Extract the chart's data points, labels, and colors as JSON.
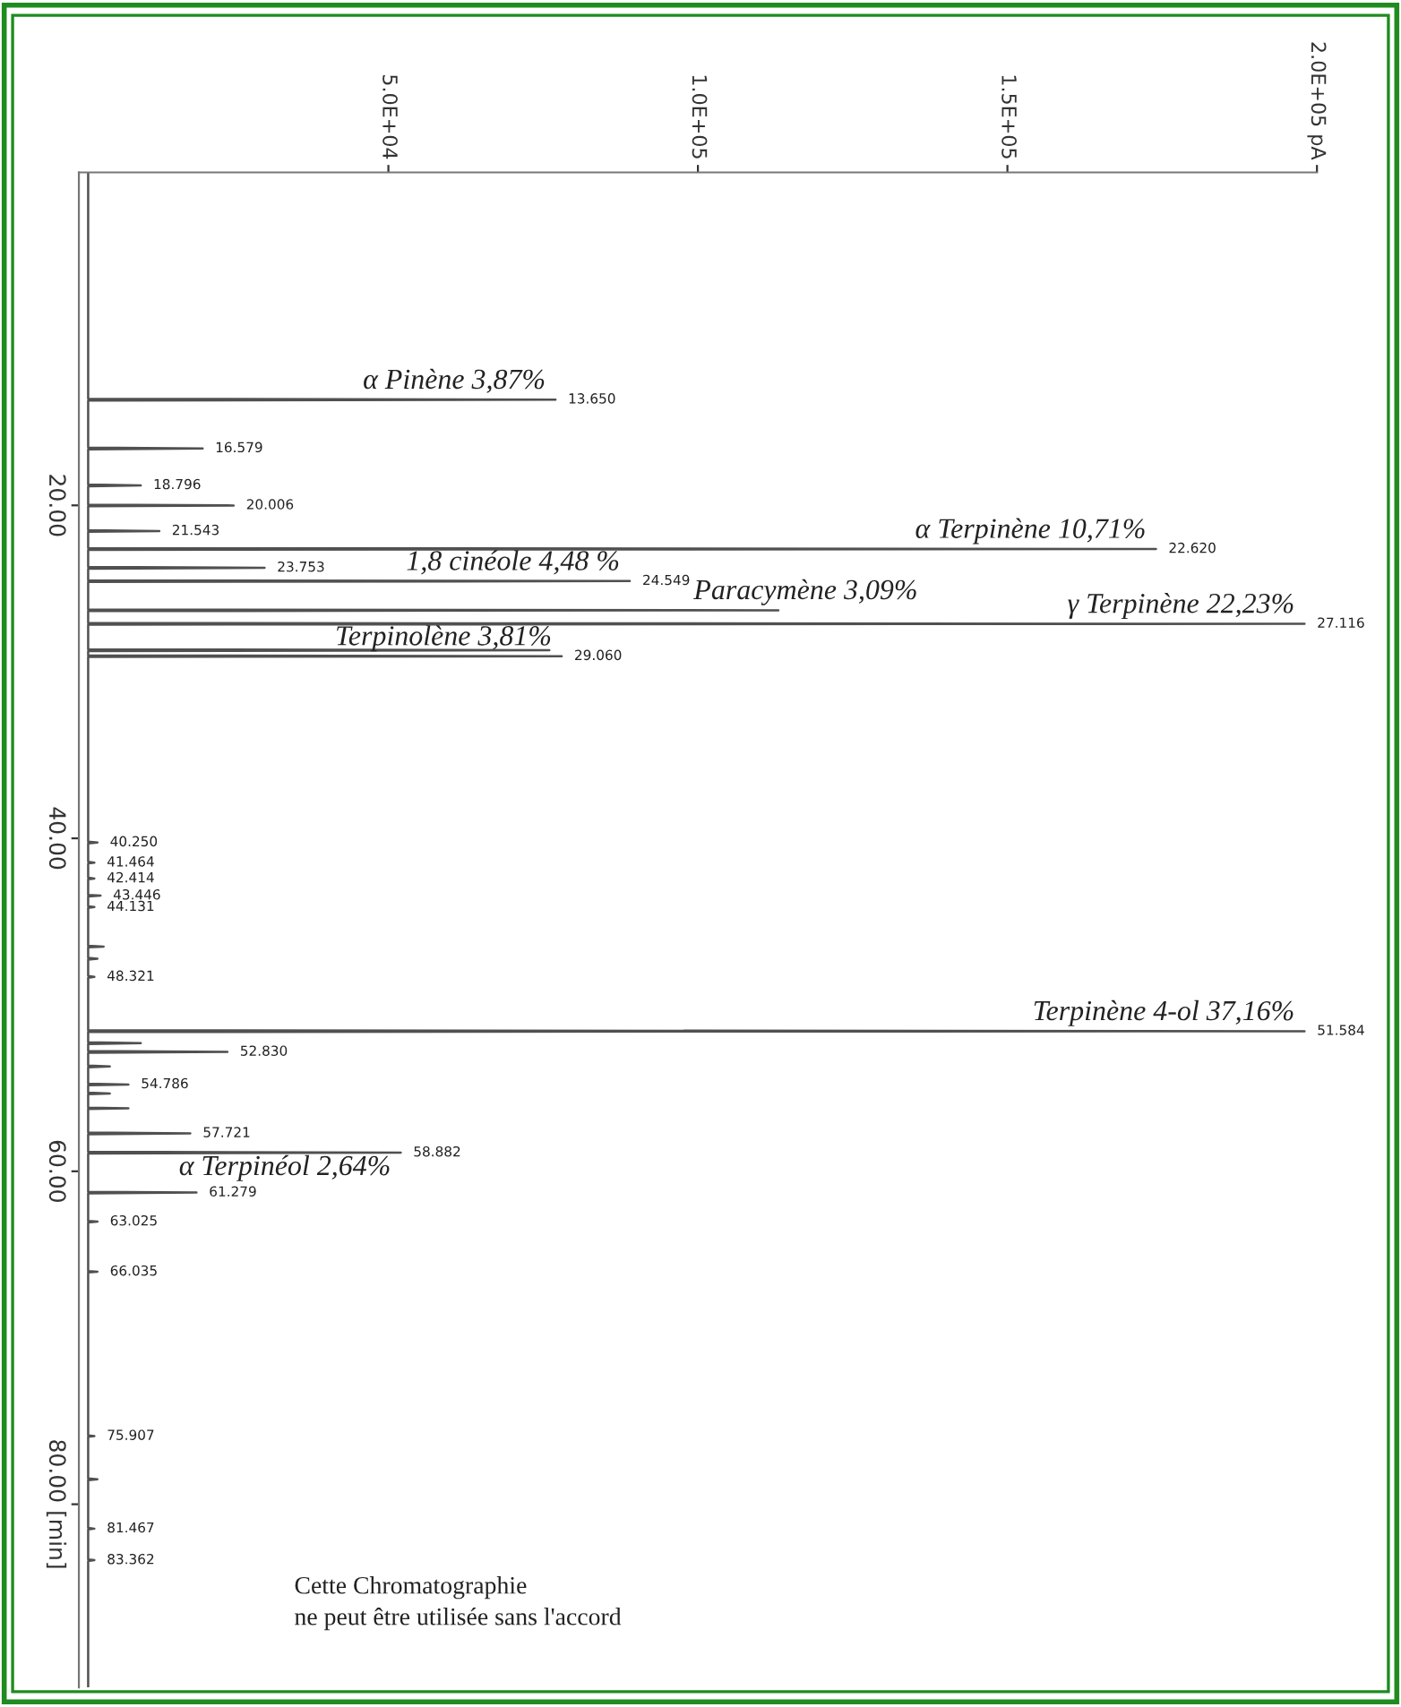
{
  "chart_data": {
    "type": "line",
    "orientation": "horizontal",
    "x": [
      0,
      13.6,
      13.65,
      13.7,
      16.53,
      16.579,
      16.63,
      18.75,
      18.796,
      18.85,
      19.96,
      20.006,
      20.05,
      21.49,
      21.543,
      21.59,
      22.57,
      22.62,
      22.67,
      23.7,
      23.753,
      23.8,
      24.5,
      24.549,
      24.6,
      26.25,
      26.3,
      26.35,
      27.07,
      27.116,
      27.16,
      28.65,
      28.7,
      28.75,
      29.01,
      29.06,
      29.11,
      40.2,
      40.25,
      40.3,
      41.41,
      41.464,
      41.51,
      42.36,
      42.414,
      42.46,
      43.4,
      43.446,
      43.49,
      44.08,
      44.131,
      44.18,
      46.45,
      46.5,
      46.55,
      47.18,
      47.229,
      47.28,
      48.27,
      48.321,
      48.37,
      51.53,
      51.584,
      51.63,
      52.25,
      52.3,
      52.35,
      52.78,
      52.83,
      52.88,
      53.65,
      53.7,
      53.75,
      54.74,
      54.786,
      54.83,
      55.28,
      55.325,
      55.37,
      56.17,
      56.216,
      56.26,
      57.67,
      57.721,
      57.77,
      58.83,
      58.882,
      58.93,
      61.23,
      61.279,
      61.33,
      62.98,
      63.025,
      63.07,
      65.99,
      66.035,
      66.08,
      75.86,
      75.907,
      75.95,
      78.45,
      78.5,
      78.55,
      81.42,
      81.467,
      81.51,
      83.31,
      83.362,
      83.41,
      91
    ],
    "series": [
      {
        "color": "#505050",
        "values": [
          1500,
          1500,
          77000,
          1500,
          1500,
          20000,
          1500,
          1500,
          10000,
          1500,
          1500,
          25000,
          1500,
          1500,
          13000,
          1500,
          1500,
          174000,
          1500,
          1500,
          30000,
          1500,
          1500,
          89000,
          1500,
          1500,
          113000,
          1500,
          1500,
          198000,
          1500,
          1500,
          76000,
          1500,
          1500,
          78000,
          1500,
          1500,
          3000,
          1500,
          1500,
          2500,
          1500,
          1500,
          2500,
          1500,
          1500,
          3500,
          1500,
          1500,
          2500,
          1500,
          1500,
          4000,
          1500,
          1500,
          3000,
          1500,
          1500,
          2500,
          1500,
          1500,
          198000,
          1500,
          1500,
          10000,
          1500,
          1500,
          24000,
          1500,
          1500,
          5000,
          1500,
          1500,
          8000,
          1500,
          1500,
          5000,
          1500,
          1500,
          8000,
          1500,
          1500,
          18000,
          1500,
          1500,
          52000,
          1500,
          1500,
          19000,
          1500,
          1500,
          3000,
          1500,
          1500,
          3000,
          1500,
          1500,
          2500,
          1500,
          1500,
          3000,
          1500,
          1500,
          2500,
          1500,
          1500,
          2500,
          1500,
          1500
        ]
      }
    ],
    "xlim": [
      0,
      200000
    ],
    "xticks": [
      {
        "value": 50000,
        "label": "5.0E+04"
      },
      {
        "value": 100000,
        "label": "1.0E+05"
      },
      {
        "value": 150000,
        "label": "1.5E+05"
      },
      {
        "value": 200000,
        "label": "2.0E+05 pA"
      }
    ],
    "ylim": [
      91,
      0
    ],
    "yticks": [
      {
        "value": 20,
        "label": "20.00"
      },
      {
        "value": 40,
        "label": "40.00"
      },
      {
        "value": 60,
        "label": "60.00"
      },
      {
        "value": 80,
        "label": "80.00 [min]"
      }
    ],
    "grid": false,
    "marker": "none",
    "line_style": "solid",
    "annotations": [
      {
        "text": "α Pinène 3,87%",
        "x": 77000,
        "y": 13.65
      },
      {
        "text": "α Terpinène 10,71%",
        "x": 174000,
        "y": 22.62
      },
      {
        "text": "1,8 cinéole 4,48 %",
        "x": 89000,
        "y": 24.549
      },
      {
        "text": "γ Terpinène 22,23%",
        "x": 198000,
        "y": 27.116
      },
      {
        "text": "Paracymène 3,09%",
        "x": 113000,
        "y": 26.3
      },
      {
        "text": "Terpinolène 3,81%",
        "x": 78000,
        "y": 29.06
      },
      {
        "text": "Terpinène 4-ol 37,16%",
        "x": 198000,
        "y": 51.584
      },
      {
        "text": "α Terpinéol 2,64%",
        "x": 52000,
        "y": 58.882
      },
      {
        "text": "13.650",
        "x": 77000,
        "y": 13.65
      },
      {
        "text": "16.579",
        "x": 20000,
        "y": 16.579
      },
      {
        "text": "18.796",
        "x": 10000,
        "y": 18.796
      },
      {
        "text": "20.006",
        "x": 25000,
        "y": 20.006
      },
      {
        "text": "21.543",
        "x": 13000,
        "y": 21.543
      },
      {
        "text": "22.620",
        "x": 174000,
        "y": 22.62
      },
      {
        "text": "23.753",
        "x": 30000,
        "y": 23.753
      },
      {
        "text": "24.549",
        "x": 89000,
        "y": 24.549
      },
      {
        "text": "27.116",
        "x": 198000,
        "y": 27.116
      },
      {
        "text": "29.060",
        "x": 78000,
        "y": 29.06
      },
      {
        "text": "40.250",
        "x": 3000,
        "y": 40.25
      },
      {
        "text": "41.464",
        "x": 2500,
        "y": 41.464
      },
      {
        "text": "42.414",
        "x": 2500,
        "y": 42.414
      },
      {
        "text": "43.446",
        "x": 3500,
        "y": 43.446
      },
      {
        "text": "44.131",
        "x": 2500,
        "y": 44.131
      },
      {
        "text": "48.321",
        "x": 2500,
        "y": 48.321
      },
      {
        "text": "51.584",
        "x": 198000,
        "y": 51.584
      },
      {
        "text": "52.830",
        "x": 24000,
        "y": 52.83
      },
      {
        "text": "54.786",
        "x": 8000,
        "y": 54.786
      },
      {
        "text": "57.721",
        "x": 18000,
        "y": 57.721
      },
      {
        "text": "58.882",
        "x": 52000,
        "y": 58.882
      },
      {
        "text": "61.279",
        "x": 19000,
        "y": 61.279
      },
      {
        "text": "63.025",
        "x": 3000,
        "y": 63.025
      },
      {
        "text": "66.035",
        "x": 3000,
        "y": 66.035
      },
      {
        "text": "75.907",
        "x": 2500,
        "y": 75.907
      },
      {
        "text": "81.467",
        "x": 2500,
        "y": 81.467
      },
      {
        "text": "83.362",
        "x": 2500,
        "y": 83.362
      },
      "Cette Chromatographie\nne peut être utilisée sans l'accord"
    ]
  }
}
